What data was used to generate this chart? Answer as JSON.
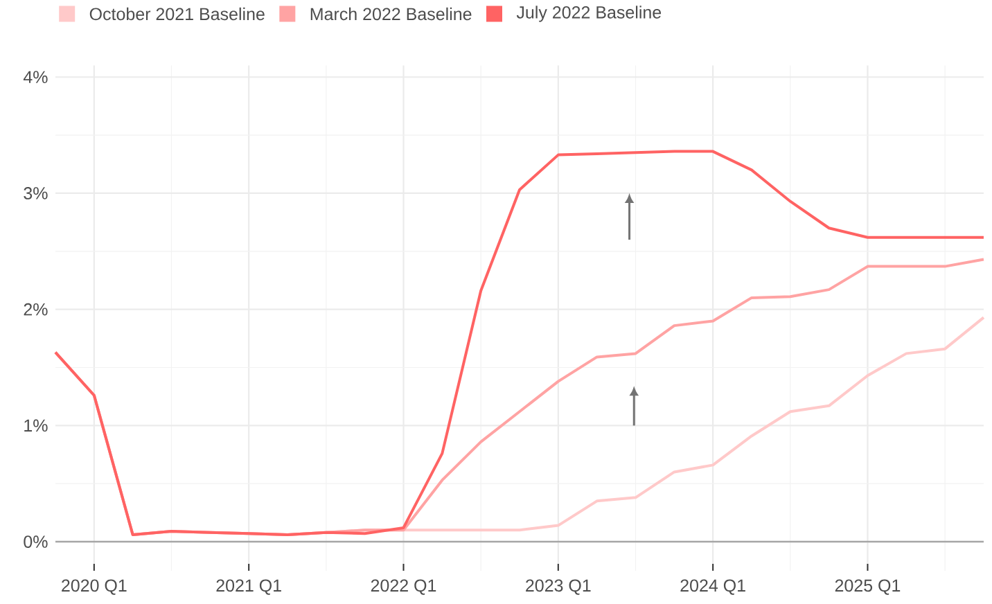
{
  "chart_data": {
    "type": "line",
    "categories": [
      null,
      "2020 Q1",
      null,
      null,
      null,
      "2021 Q1",
      null,
      null,
      null,
      "2022 Q1",
      null,
      null,
      null,
      "2023 Q1",
      null,
      null,
      null,
      "2024 Q1",
      null,
      null,
      null,
      "2025 Q1",
      null,
      null,
      null
    ],
    "series": [
      {
        "name": "October 2021 Baseline",
        "color": "#ffc9c9",
        "values": [
          1.63,
          1.26,
          0.06,
          0.09,
          0.08,
          0.07,
          0.06,
          0.08,
          0.1,
          0.1,
          0.1,
          0.1,
          0.1,
          0.14,
          0.35,
          0.38,
          0.6,
          0.66,
          0.91,
          1.12,
          1.17,
          1.43,
          1.62,
          1.66,
          1.93
        ]
      },
      {
        "name": "March 2022 Baseline",
        "color": "#ffa3a3",
        "values": [
          1.63,
          1.26,
          0.06,
          0.09,
          0.08,
          0.07,
          0.06,
          0.08,
          0.1,
          0.1,
          0.53,
          0.86,
          1.12,
          1.38,
          1.59,
          1.62,
          1.86,
          1.9,
          2.1,
          2.11,
          2.17,
          2.37,
          2.37,
          2.37,
          2.43
        ]
      },
      {
        "name": "July 2022 Baseline",
        "color": "#ff6363",
        "values": [
          1.63,
          1.26,
          0.06,
          0.09,
          0.08,
          0.07,
          0.06,
          0.08,
          0.07,
          0.12,
          0.76,
          2.16,
          3.03,
          3.33,
          3.34,
          3.35,
          3.36,
          3.36,
          3.2,
          2.93,
          2.7,
          2.62,
          2.62,
          2.62,
          2.62
        ]
      }
    ],
    "ylim": [
      -0.25,
      4.1
    ],
    "yticks": [
      {
        "value": 0,
        "label": "0%"
      },
      {
        "value": 0.5,
        "label": null
      },
      {
        "value": 1,
        "label": "1%"
      },
      {
        "value": 1.5,
        "label": null
      },
      {
        "value": 2,
        "label": "2%"
      },
      {
        "value": 2.5,
        "label": null
      },
      {
        "value": 3,
        "label": "3%"
      },
      {
        "value": 3.5,
        "label": null
      },
      {
        "value": 4,
        "label": "4%"
      }
    ],
    "grid": true,
    "legend": "top left",
    "marker": "none",
    "line_style": "solid"
  }
}
